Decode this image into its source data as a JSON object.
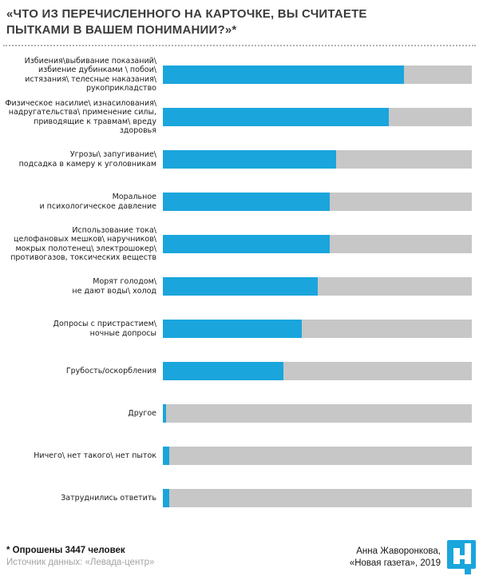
{
  "header": {
    "title": "«ЧТО ИЗ ПЕРЕЧИСЛЕННОГО НА КАРТОЧКЕ, ВЫ СЧИТАЕТЕ ПЫТКАМИ В ВАШЕМ ПОНИМАНИИ?»*"
  },
  "chart_data": {
    "type": "bar",
    "orientation": "horizontal",
    "title": "«ЧТО ИЗ ПЕРЕЧИСЛЕННОГО НА КАРТОЧКЕ, ВЫ СЧИТАЕТЕ ПЫТКАМИ В ВАШЕМ ПОНИМАНИИ?»*",
    "categories": [
      "Избиения\\выбивание показаний\\ избиение дубинками \\ побои\\ истязания\\ телесные наказания\\ рукоприкладство",
      "Физическое насилие\\ изнасилования\\ надругательства\\ применение силы, приводящие к травмам\\ вреду здоровья",
      "Угрозы\\ запугивание\\ подсадка в камеру к уголовникам",
      "Моральное и психологическое давление",
      "Использование тока\\ целофановых мешков\\ наручников\\ мокрых полотенец\\ электрошокер\\ противогазов, токсических веществ",
      "Морят голодом\\ не дают воды\\ холод",
      "Допросы с пристрастием\\ ночные допросы",
      "Грубость/оскорбления",
      "Другое",
      "Ничего\\ нет такого\\ нет пыток",
      "Затруднились ответить"
    ],
    "category_lines": [
      [
        "Избиения\\выбивание показаний\\",
        "избиение дубинками \\ побои\\",
        "истязания\\ телесные наказания\\",
        "рукоприкладство"
      ],
      [
        "Физическое насилие\\ изнасилования\\",
        "надругательства\\ применение силы,",
        "приводящие к травмам\\ вреду здоровья"
      ],
      [
        "Угрозы\\ запугивание\\",
        "подсадка в камеру к уголовникам"
      ],
      [
        "Моральное",
        "и психологическое давление"
      ],
      [
        "Использование тока\\",
        "целофановых мешков\\ наручников\\",
        "мокрых полотенец\\ электрошокер\\",
        "противогазов, токсических веществ"
      ],
      [
        "Морят голодом\\",
        "не дают воды\\ холод"
      ],
      [
        "Допросы с пристрастием\\",
        "ночные допросы"
      ],
      [
        "Грубость/оскорбления"
      ],
      [
        "Другое"
      ],
      [
        "Ничего\\ нет такого\\ нет пыток"
      ],
      [
        "Затруднились ответить"
      ]
    ],
    "values": [
      78,
      73,
      56,
      54,
      54,
      50,
      45,
      39,
      1,
      2,
      2
    ],
    "value_unit": "%",
    "xlim": [
      0,
      100
    ],
    "grid": false,
    "legend": false,
    "bar_color": "#1aa5dc",
    "track_color": "#c7c7c7"
  },
  "footer": {
    "note_bold": "* Опрошены 3447 человек",
    "note_source": "Источник данных: «Левада-центр»",
    "credit_line1": "Анна Жаворонкова,",
    "credit_line2": "«Новая газета», 2019",
    "logo": "novaya-gazeta-logo",
    "logo_color": "#1aa5dc"
  },
  "colors": {
    "bar_blue": "#1aa5dc",
    "track_gray": "#c7c7c7",
    "title_text": "#3b3b3b",
    "label_text": "#1b1b1b",
    "muted_text": "#a3a3a3"
  }
}
